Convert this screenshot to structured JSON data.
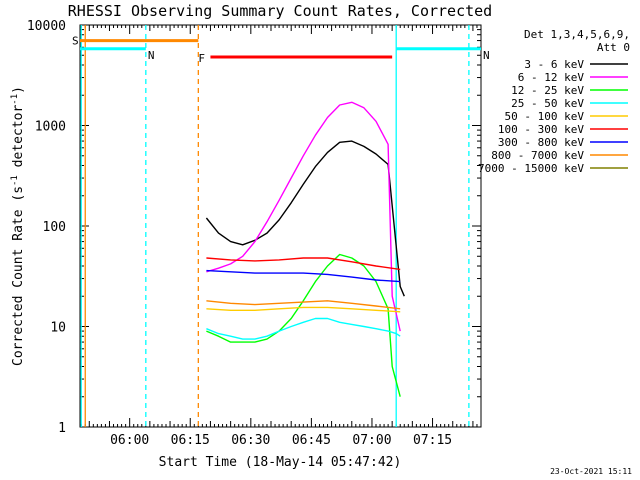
{
  "chart_data": {
    "type": "line",
    "title": "RHESSI Observing Summary Count Rates, Corrected",
    "xlabel": "Start Time (18-May-14 05:47:42)",
    "ylabel_main": "Corrected Count Rate (s",
    "ylabel_sup1": "-1",
    "ylabel_mid": " detector",
    "ylabel_sup2": "-1",
    "ylabel_end": ")",
    "y_scale": "log",
    "ylim": [
      1,
      10000
    ],
    "xlim": [
      "05:47:42",
      "07:27:00"
    ],
    "x_ticks": [
      "06:00",
      "06:15",
      "06:30",
      "06:45",
      "07:00",
      "07:15"
    ],
    "y_ticks": [
      "1",
      "10",
      "100",
      "1000",
      "10000"
    ],
    "footer_date": "23-Oct-2021 15:11",
    "legend": {
      "header1": "Det 1,3,4,5,6,9,",
      "header2": "Att 0",
      "placement": "right",
      "entries": [
        {
          "label": "3 - 6 keV",
          "color": "#000000"
        },
        {
          "label": "6 - 12 keV",
          "color": "#ff00ff"
        },
        {
          "label": "12 - 25 keV",
          "color": "#00ff00"
        },
        {
          "label": "25 - 50 keV",
          "color": "#00ffff"
        },
        {
          "label": "50 - 100 keV",
          "color": "#ffcc00"
        },
        {
          "label": "100 - 300 keV",
          "color": "#ff0000"
        },
        {
          "label": "300 - 800 keV",
          "color": "#0000ff"
        },
        {
          "label": "800 - 7000 keV",
          "color": "#ff8800"
        },
        {
          "label": "7000 - 15000 keV",
          "color": "#808000"
        }
      ]
    },
    "flags": [
      {
        "label": "S",
        "color": "#ff8800",
        "value": 7000,
        "start": "05:47:42",
        "end": "06:17:00"
      },
      {
        "label": "N",
        "color": "#00ffff",
        "value": 5800,
        "start": "05:47:42",
        "end": "06:04:00"
      },
      {
        "label": "N",
        "color": "#00ffff",
        "value": 5800,
        "start": "07:06:00",
        "end": "07:27:00"
      },
      {
        "label": "F",
        "color": "#ff0000",
        "value": 4800,
        "start": "06:20:00",
        "end": "07:05:00"
      }
    ],
    "markers": [
      {
        "time": "05:48:00",
        "color": "#00ffff",
        "style": "solid"
      },
      {
        "time": "05:49:00",
        "color": "#ff8800",
        "style": "solid"
      },
      {
        "time": "06:04:00",
        "color": "#00ffff",
        "style": "dashed"
      },
      {
        "time": "06:17:00",
        "color": "#ff8800",
        "style": "dashed"
      },
      {
        "time": "07:06:00",
        "color": "#00ffff",
        "style": "solid"
      },
      {
        "time": "07:24:00",
        "color": "#00ffff",
        "style": "dashed"
      }
    ],
    "series": [
      {
        "name": "3 - 6 keV",
        "color": "#000000",
        "x": [
          "06:19",
          "06:22",
          "06:25",
          "06:28",
          "06:31",
          "06:34",
          "06:37",
          "06:40",
          "06:43",
          "06:46",
          "06:49",
          "06:52",
          "06:55",
          "06:58",
          "07:01",
          "07:04",
          "07:07",
          "07:08"
        ],
        "y": [
          120,
          85,
          70,
          65,
          72,
          85,
          115,
          170,
          260,
          390,
          540,
          680,
          700,
          620,
          520,
          410,
          25,
          20
        ]
      },
      {
        "name": "6 - 12 keV",
        "color": "#ff00ff",
        "x": [
          "06:19",
          "06:22",
          "06:25",
          "06:28",
          "06:31",
          "06:34",
          "06:37",
          "06:40",
          "06:43",
          "06:46",
          "06:49",
          "06:52",
          "06:55",
          "06:58",
          "07:01",
          "07:04",
          "07:05",
          "07:07"
        ],
        "y": [
          35,
          38,
          42,
          50,
          70,
          110,
          180,
          300,
          500,
          800,
          1200,
          1600,
          1700,
          1500,
          1100,
          650,
          20,
          9
        ]
      },
      {
        "name": "12 - 25 keV",
        "color": "#00ff00",
        "x": [
          "06:19",
          "06:22",
          "06:25",
          "06:28",
          "06:31",
          "06:34",
          "06:37",
          "06:40",
          "06:43",
          "06:46",
          "06:49",
          "06:52",
          "06:55",
          "06:58",
          "07:01",
          "07:04",
          "07:05",
          "07:07"
        ],
        "y": [
          9,
          8,
          7,
          7,
          7,
          7.5,
          9,
          12,
          18,
          28,
          40,
          52,
          48,
          40,
          28,
          15,
          4,
          2
        ]
      },
      {
        "name": "25 - 50 keV",
        "color": "#00ffff",
        "x": [
          "06:19",
          "06:22",
          "06:25",
          "06:28",
          "06:31",
          "06:34",
          "06:37",
          "06:40",
          "06:43",
          "06:46",
          "06:49",
          "06:52",
          "06:55",
          "06:58",
          "07:01",
          "07:04",
          "07:06",
          "07:07"
        ],
        "y": [
          9.5,
          8.5,
          8,
          7.5,
          7.5,
          8,
          9,
          10,
          11,
          12,
          12,
          11,
          10.5,
          10,
          9.5,
          9,
          8.5,
          8
        ]
      },
      {
        "name": "50 - 100 keV",
        "color": "#ffcc00",
        "x": [
          "06:19",
          "06:25",
          "06:31",
          "06:37",
          "06:43",
          "06:49",
          "06:55",
          "07:01",
          "07:07"
        ],
        "y": [
          15,
          14.5,
          14.5,
          15,
          15.5,
          15.5,
          15,
          14.5,
          14
        ]
      },
      {
        "name": "100 - 300 keV",
        "color": "#ff0000",
        "x": [
          "06:19",
          "06:25",
          "06:31",
          "06:37",
          "06:43",
          "06:49",
          "06:55",
          "07:01",
          "07:07"
        ],
        "y": [
          48,
          46,
          45,
          46,
          48,
          48,
          44,
          40,
          37
        ]
      },
      {
        "name": "300 - 800 keV",
        "color": "#0000ff",
        "x": [
          "06:19",
          "06:25",
          "06:31",
          "06:37",
          "06:43",
          "06:49",
          "06:55",
          "07:01",
          "07:07"
        ],
        "y": [
          36,
          35,
          34,
          34,
          34,
          33,
          31,
          29,
          28
        ]
      },
      {
        "name": "800 - 7000 keV",
        "color": "#ff8800",
        "x": [
          "06:19",
          "06:25",
          "06:31",
          "06:37",
          "06:43",
          "06:49",
          "06:55",
          "07:01",
          "07:07"
        ],
        "y": [
          18,
          17,
          16.5,
          17,
          17.5,
          18,
          17,
          16,
          15
        ]
      }
    ]
  }
}
